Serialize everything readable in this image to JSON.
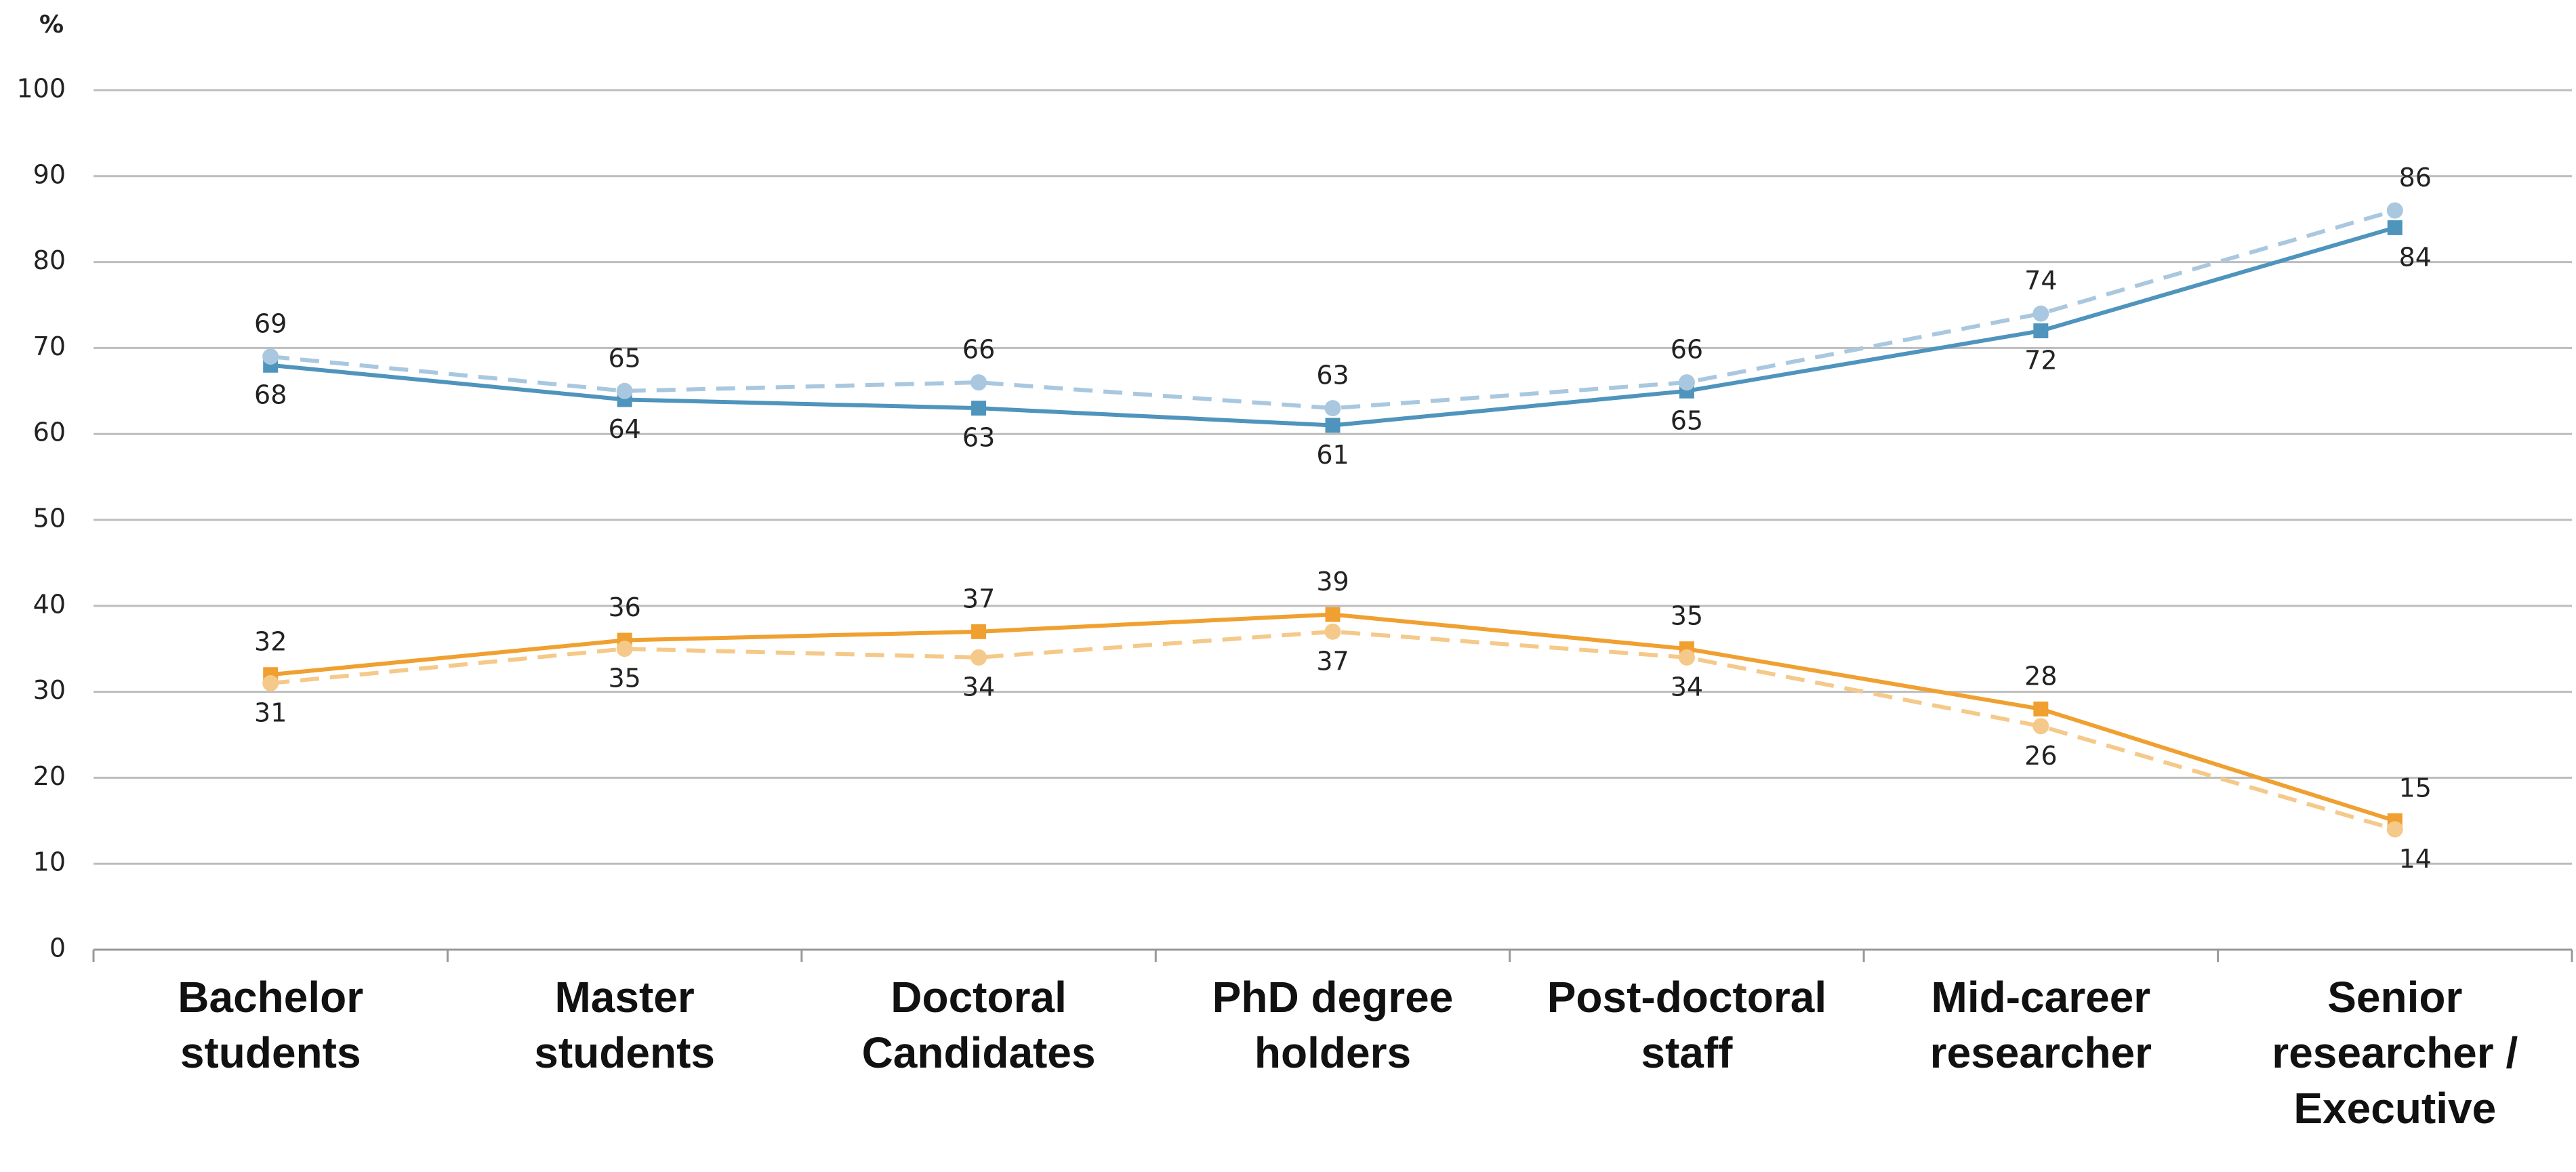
{
  "chart_data": {
    "type": "line",
    "y_label": "%",
    "categories": [
      "Bachelor students",
      "Master students",
      "Doctoral Candidates",
      "PhD degree holders",
      "Post-doctoral staff",
      "Mid-career researcher",
      "Senior researcher / Executive"
    ],
    "series": [
      {
        "color": "#4f94bd",
        "dash": false,
        "marker": "square",
        "values": [
          68,
          64,
          63,
          61,
          65,
          72,
          84
        ]
      },
      {
        "color": "#a9c8e0",
        "dash": true,
        "marker": "circle",
        "values": [
          69,
          65,
          66,
          63,
          66,
          74,
          86
        ]
      },
      {
        "color": "#f0a030",
        "dash": false,
        "marker": "square",
        "values": [
          32,
          36,
          37,
          39,
          35,
          28,
          15
        ]
      },
      {
        "color": "#f5c98a",
        "dash": true,
        "marker": "circle",
        "values": [
          31,
          35,
          34,
          37,
          34,
          26,
          14
        ]
      }
    ],
    "ylim": [
      0,
      100
    ],
    "yticks": [
      0,
      10,
      20,
      30,
      40,
      50,
      60,
      70,
      80,
      90,
      100
    ],
    "grid": true
  }
}
